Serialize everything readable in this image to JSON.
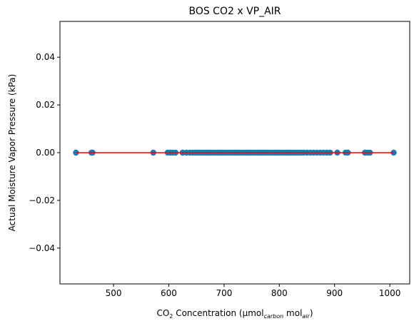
{
  "chart_data": {
    "type": "scatter",
    "title": "BOS CO2 x VP_AIR",
    "xlabel": {
      "prefix": "CO",
      "sub1": "2",
      "mid": " Concentration (µmol",
      "sub2": "carbon",
      "mid2": " mol",
      "sub3": "air",
      "suffix": ")"
    },
    "ylabel": "Actual Moisture Vapor Pressure (kPa)",
    "xlim": [
      403,
      1036
    ],
    "ylim": [
      -0.055,
      0.055
    ],
    "xticks": [
      500,
      600,
      700,
      800,
      900,
      1000
    ],
    "yticks": [
      -0.04,
      -0.02,
      0.0,
      0.02,
      0.04
    ],
    "xtick_labels": [
      "500",
      "600",
      "700",
      "800",
      "900",
      "1000"
    ],
    "ytick_labels": [
      "−0.04",
      "−0.02",
      "0.00",
      "0.02",
      "0.04"
    ],
    "grid": false,
    "point_color": "#1f77b4",
    "line_color": "#ff0000",
    "fit_line": {
      "x": [
        432,
        1007
      ],
      "y": [
        0,
        0
      ]
    },
    "points_x": [
      432,
      460,
      462,
      572,
      598,
      603,
      607,
      612,
      625,
      632,
      638,
      643,
      648,
      652,
      656,
      660,
      664,
      668,
      672,
      676,
      680,
      684,
      688,
      692,
      696,
      700,
      704,
      708,
      712,
      716,
      720,
      724,
      728,
      732,
      736,
      740,
      744,
      748,
      752,
      756,
      760,
      764,
      768,
      772,
      776,
      780,
      784,
      788,
      792,
      796,
      800,
      804,
      808,
      812,
      816,
      820,
      824,
      828,
      832,
      836,
      840,
      844,
      850,
      856,
      862,
      868,
      874,
      880,
      886,
      892,
      905,
      920,
      924,
      955,
      960,
      964,
      1007
    ],
    "points_y": [
      0,
      0,
      0,
      0,
      0,
      0,
      0,
      0,
      0,
      0,
      0,
      0,
      0,
      0,
      0,
      0,
      0,
      0,
      0,
      0,
      0,
      0,
      0,
      0,
      0,
      0,
      0,
      0,
      0,
      0,
      0,
      0,
      0,
      0,
      0,
      0,
      0,
      0,
      0,
      0,
      0,
      0,
      0,
      0,
      0,
      0,
      0,
      0,
      0,
      0,
      0,
      0,
      0,
      0,
      0,
      0,
      0,
      0,
      0,
      0,
      0,
      0,
      0,
      0,
      0,
      0,
      0,
      0,
      0,
      0,
      0,
      0,
      0,
      0,
      0,
      0,
      0
    ]
  }
}
